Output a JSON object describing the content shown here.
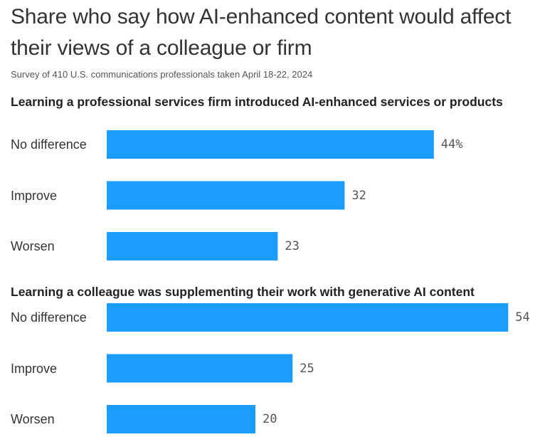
{
  "title": "Share who say how AI-enhanced content would affect their views of a colleague or firm",
  "subtitle": "Survey of 410 U.S. communications professionals taken April 18-22, 2024",
  "colors": {
    "bar": "#1a9dff",
    "text": "#333333"
  },
  "chart_data": [
    {
      "type": "bar",
      "orientation": "horizontal",
      "title": "Learning a professional services firm introduced AI-enhanced services or products",
      "categories": [
        "No difference",
        "Improve",
        "Worsen"
      ],
      "values": [
        44,
        32,
        23
      ],
      "value_labels": [
        "44%",
        "32",
        "23"
      ],
      "unit": "%"
    },
    {
      "type": "bar",
      "orientation": "horizontal",
      "title": "Learning a colleague was supplementing their work with generative AI content",
      "categories": [
        "No difference",
        "Improve",
        "Worsen"
      ],
      "values": [
        54,
        25,
        20
      ],
      "value_labels": [
        "54",
        "25",
        "20"
      ],
      "unit": "%"
    }
  ]
}
